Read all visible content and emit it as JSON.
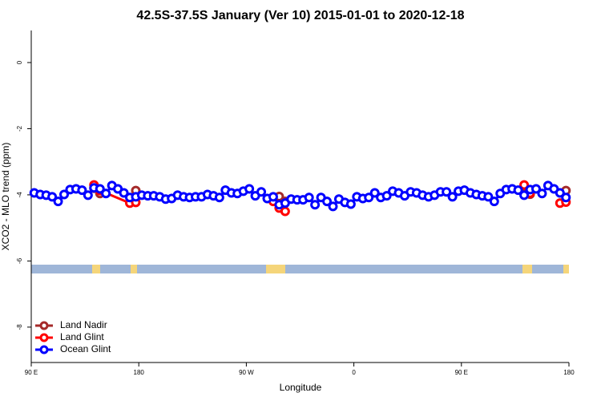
{
  "chart_data": {
    "type": "line",
    "title": "42.5S-37.5S January (Ver 10)   2015-01-01 to 2020-12-18",
    "x_label": "Longitude",
    "y_label": "XCO2 - MLO trend (ppm)",
    "xlim": [
      90,
      540
    ],
    "ylim": [
      -9.07,
      0.97
    ],
    "xticks": [
      {
        "value": 90,
        "label": "90 E"
      },
      {
        "value": 180,
        "label": "180"
      },
      {
        "value": 270,
        "label": "90 W"
      },
      {
        "value": 360,
        "label": "0"
      },
      {
        "value": 450,
        "label": "90 E"
      },
      {
        "value": 540,
        "label": "180"
      }
    ],
    "yticks": [
      0,
      -2,
      -4,
      -6,
      -8
    ],
    "legend": "bottom-left",
    "series": [
      {
        "name": "Land Nadir",
        "color": "#a52a2a",
        "x": [
          142.5,
          147.5,
          152.5,
          177.5,
          182.5,
          292.5,
          297.5,
          302.5,
          307.5,
          502.5,
          507.5,
          512.5,
          537.5
        ],
        "values": [
          -3.8,
          -3.96,
          null,
          -3.87,
          null,
          -4.1,
          -4.05,
          -4.2,
          null,
          -3.75,
          -3.98,
          null,
          -3.87
        ]
      },
      {
        "name": "Land Glint",
        "color": "#ff0000",
        "x": [
          142.5,
          147.5,
          172.5,
          177.5,
          182.5,
          292.5,
          297.5,
          302.5,
          307.5,
          502.5,
          507.5,
          512.5,
          532.5,
          537.5
        ],
        "values": [
          -3.7,
          -3.87,
          -4.25,
          -4.23,
          null,
          -4.2,
          -4.4,
          -4.5,
          null,
          -3.7,
          -3.95,
          null,
          -4.25,
          -4.22
        ]
      },
      {
        "name": "Ocean Glint",
        "color": "#0000ff",
        "x": [
          92.5,
          97.5,
          102.5,
          107.5,
          112.5,
          117.5,
          122.5,
          127.5,
          132.5,
          137.5,
          142.5,
          147.5,
          152.5,
          157.5,
          162.5,
          167.5,
          172.5,
          177.5,
          182.5,
          187.5,
          192.5,
          197.5,
          202.5,
          207.5,
          212.5,
          217.5,
          222.5,
          227.5,
          232.5,
          237.5,
          242.5,
          247.5,
          252.5,
          257.5,
          262.5,
          267.5,
          272.5,
          277.5,
          282.5,
          287.5,
          292.5,
          297.5,
          302.5,
          307.5,
          312.5,
          317.5,
          322.5,
          327.5,
          332.5,
          337.5,
          342.5,
          347.5,
          352.5,
          357.5,
          362.5,
          367.5,
          372.5,
          377.5,
          382.5,
          387.5,
          392.5,
          397.5,
          402.5,
          407.5,
          412.5,
          417.5,
          422.5,
          427.5,
          432.5,
          437.5,
          442.5,
          447.5,
          452.5,
          457.5,
          462.5,
          467.5,
          472.5,
          477.5,
          482.5,
          487.5,
          492.5,
          497.5,
          502.5,
          507.5,
          512.5,
          517.5,
          522.5,
          527.5,
          532.5,
          537.5
        ],
        "values": [
          -3.94,
          -3.99,
          -4.01,
          -4.06,
          -4.2,
          -3.99,
          -3.84,
          -3.82,
          -3.86,
          -4.01,
          -3.79,
          -3.82,
          -3.96,
          -3.72,
          -3.82,
          -3.94,
          -4.08,
          -4.06,
          -4.01,
          -4.03,
          -4.03,
          -4.06,
          -4.13,
          -4.11,
          -4.01,
          -4.06,
          -4.08,
          -4.06,
          -4.06,
          -3.99,
          -4.03,
          -4.08,
          -3.86,
          -3.94,
          -3.96,
          -3.89,
          -3.82,
          -4.03,
          -3.91,
          -4.11,
          -4.06,
          -4.3,
          -4.25,
          -4.13,
          -4.15,
          -4.15,
          -4.08,
          -4.3,
          -4.08,
          -4.2,
          -4.35,
          -4.13,
          -4.23,
          -4.28,
          -4.06,
          -4.11,
          -4.08,
          -3.94,
          -4.08,
          -4.03,
          -3.89,
          -3.94,
          -4.03,
          -3.91,
          -3.94,
          -4.01,
          -4.06,
          -4.01,
          -3.91,
          -3.91,
          -4.06,
          -3.89,
          -3.86,
          -3.94,
          -3.99,
          -4.03,
          -4.06,
          -4.2,
          -3.96,
          -3.84,
          -3.82,
          -3.86,
          -4.01,
          -3.84,
          -3.82,
          -3.96,
          -3.72,
          -3.82,
          -3.94,
          -4.08
        ]
      }
    ]
  }
}
